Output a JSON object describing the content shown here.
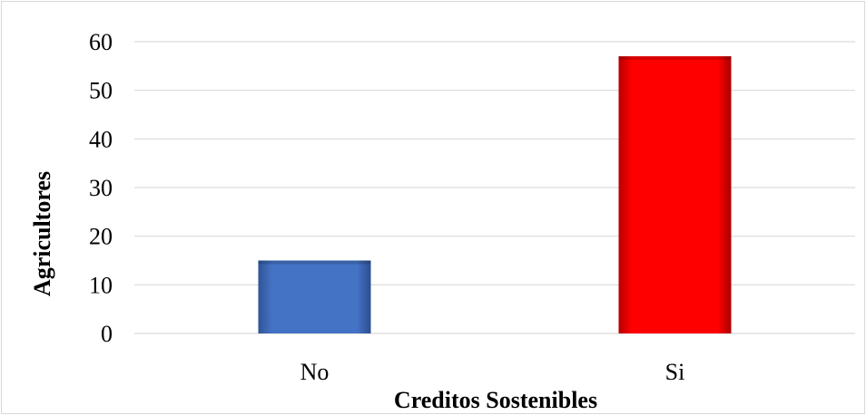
{
  "chart_data": {
    "type": "bar",
    "categories": [
      "No",
      "Si"
    ],
    "values": [
      15,
      57
    ],
    "colors": [
      "#4472C4",
      "#FF0000"
    ],
    "title": "",
    "xlabel": "Creditos Sostenibles",
    "ylabel": "Agricultores",
    "ylim": [
      0,
      60
    ],
    "yticks": [
      0,
      10,
      20,
      30,
      40,
      50,
      60
    ],
    "ytick_labels": [
      "0",
      "10",
      "20",
      "30",
      "40",
      "50",
      "60"
    ],
    "grid": true,
    "legend": "none"
  }
}
